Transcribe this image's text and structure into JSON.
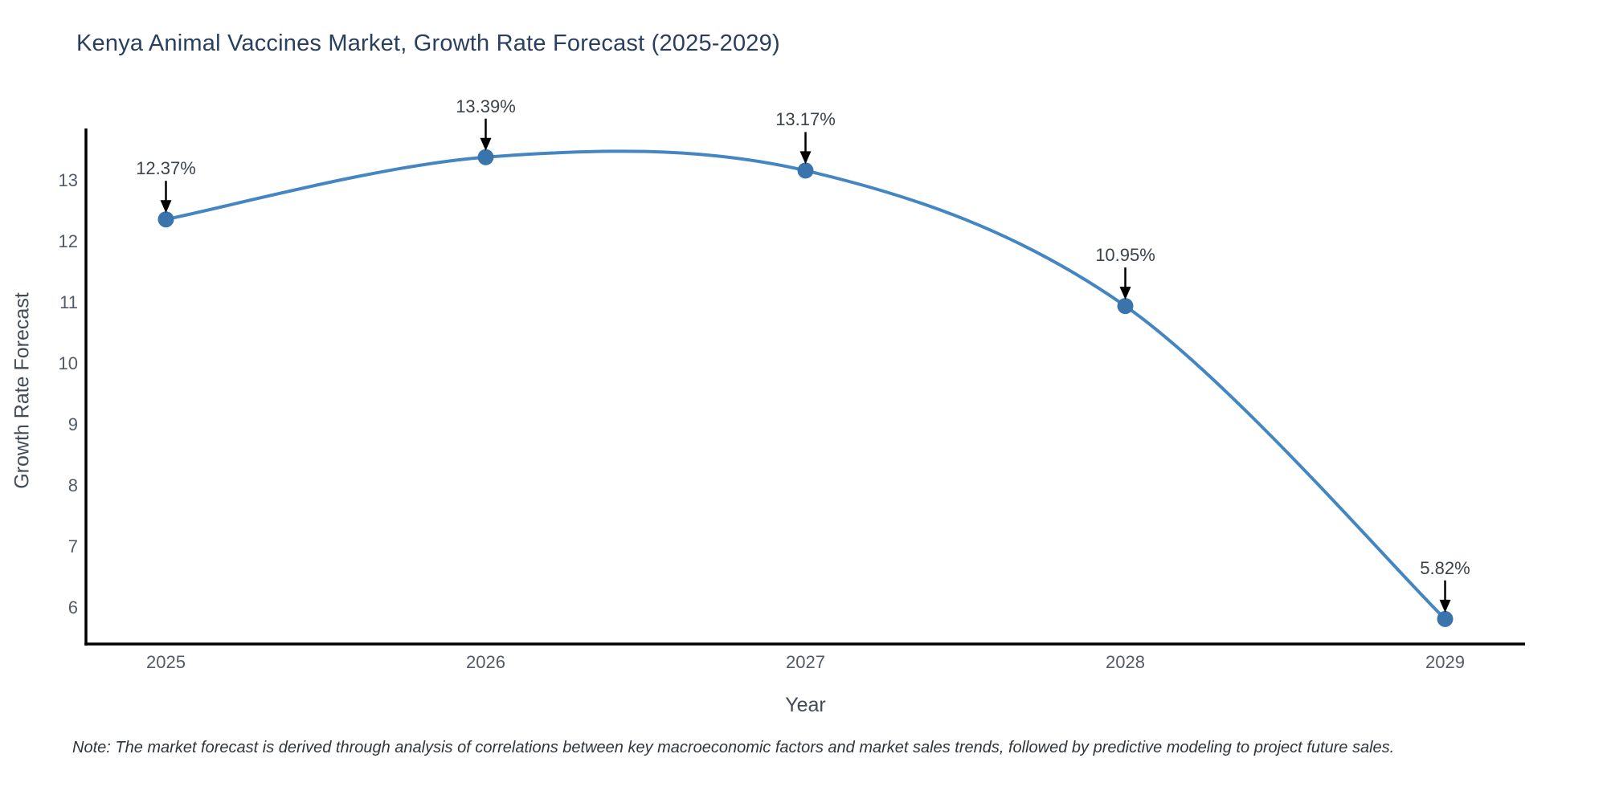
{
  "note": "Note: The market forecast is derived through analysis of correlations between key macroeconomic factors and market sales trends, followed by predictive modeling to project future sales.",
  "chart_data": {
    "type": "line",
    "title": "Kenya Animal Vaccines Market, Growth Rate Forecast (2025-2029)",
    "xlabel": "Year",
    "ylabel": "Growth Rate Forecast",
    "x": [
      2025,
      2026,
      2027,
      2028,
      2029
    ],
    "series": [
      {
        "name": "Growth Rate Forecast",
        "values": [
          12.37,
          13.39,
          13.17,
          10.95,
          5.82
        ]
      }
    ],
    "point_labels": [
      "12.37%",
      "13.39%",
      "13.17%",
      "10.95%",
      "5.82%"
    ],
    "xticks": [
      "2025",
      "2026",
      "2027",
      "2028",
      "2029"
    ],
    "yticks": [
      6,
      7,
      8,
      9,
      10,
      11,
      12,
      13
    ],
    "xlim": [
      2024.75,
      2029.25
    ],
    "ylim": [
      5.41,
      13.86
    ],
    "grid": false,
    "legend": "none",
    "line_shape": "spline",
    "annotation_arrows": true,
    "colors": {
      "line": "#4486c1",
      "marker": "#3a74ad",
      "axis": "#000000",
      "arrow": "#000000",
      "title": "#2a3f5f",
      "tick_label": "#535b66",
      "axis_title": "#424b57",
      "annotation": "#3d434c",
      "note": "#30353c",
      "background": "#ffffff"
    }
  }
}
